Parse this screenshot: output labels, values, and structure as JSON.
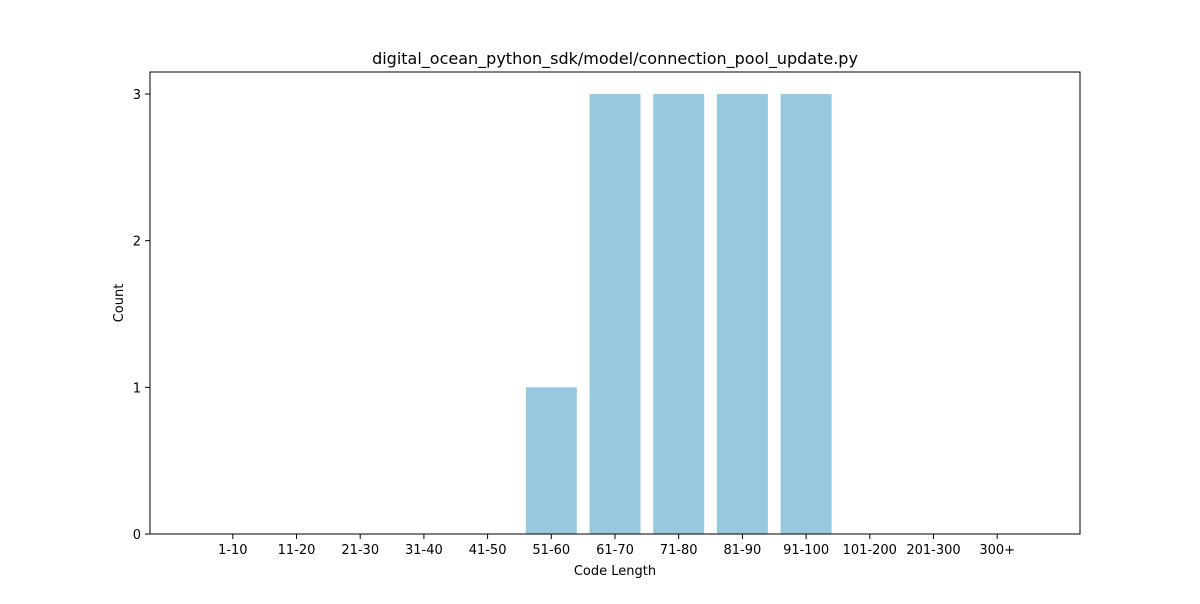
{
  "chart_data": {
    "type": "bar",
    "title": "digital_ocean_python_sdk/model/connection_pool_update.py",
    "xlabel": "Code Length",
    "ylabel": "Count",
    "categories": [
      "1-10",
      "11-20",
      "21-30",
      "31-40",
      "41-50",
      "51-60",
      "61-70",
      "71-80",
      "81-90",
      "91-100",
      "101-200",
      "201-300",
      "300+"
    ],
    "values": [
      0,
      0,
      0,
      0,
      0,
      1,
      3,
      3,
      3,
      3,
      0,
      0,
      0
    ],
    "yticks": [
      0,
      1,
      2,
      3
    ],
    "ylim": [
      0,
      3.15
    ],
    "bar_color": "#96c9dd",
    "grid": false,
    "legend": "none"
  }
}
